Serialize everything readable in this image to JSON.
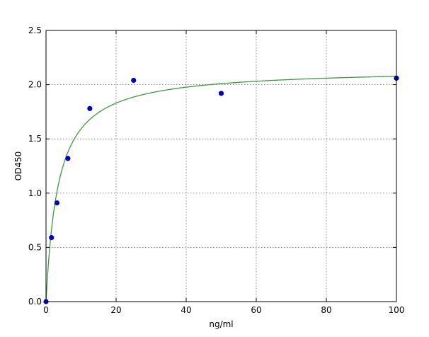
{
  "chart_data": {
    "type": "scatter",
    "title": "",
    "xlabel": "ng/ml",
    "ylabel": "OD450",
    "xlim": [
      0,
      100
    ],
    "ylim": [
      0.0,
      2.5
    ],
    "x_ticks": [
      "0",
      "20",
      "40",
      "60",
      "80",
      "100"
    ],
    "y_ticks": [
      "0.0",
      "0.5",
      "1.0",
      "1.5",
      "2.0",
      "2.5"
    ],
    "grid": true,
    "series": [
      {
        "kind": "points",
        "x": [
          0,
          1.56,
          3.125,
          6.25,
          12.5,
          25,
          50,
          100
        ],
        "y": [
          0.0,
          0.59,
          0.91,
          1.32,
          1.78,
          2.04,
          1.92,
          2.06
        ],
        "color": "#0000bf"
      },
      {
        "kind": "fit-curve",
        "model": "hyperbolic",
        "vmax": 2.15,
        "k": 3.5,
        "color": "#3c9a3c"
      }
    ]
  }
}
